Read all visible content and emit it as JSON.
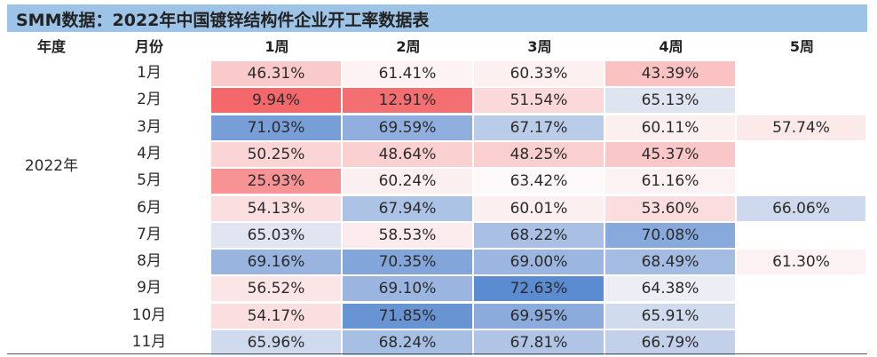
{
  "title": "SMM数据：2022年中国镀锌结构件企业开工率数据表",
  "headers": [
    "年度",
    "月份",
    "1周",
    "2周",
    "3周",
    "4周",
    "5周"
  ],
  "year": "2022年",
  "chart_data": {
    "type": "table",
    "title": "SMM数据：2022年中国镀锌结构件企业开工率数据表",
    "columns": [
      "1周",
      "2周",
      "3周",
      "4周",
      "5周"
    ],
    "rows": [
      {
        "month": "1月",
        "values": [
          46.31,
          61.41,
          60.33,
          43.39,
          null
        ]
      },
      {
        "month": "2月",
        "values": [
          9.94,
          12.91,
          51.54,
          65.13,
          null
        ]
      },
      {
        "month": "3月",
        "values": [
          71.03,
          69.59,
          67.17,
          60.11,
          57.74
        ]
      },
      {
        "month": "4月",
        "values": [
          50.25,
          48.64,
          48.25,
          45.37,
          null
        ]
      },
      {
        "month": "5月",
        "values": [
          25.93,
          60.24,
          63.42,
          61.16,
          null
        ]
      },
      {
        "month": "6月",
        "values": [
          54.13,
          67.94,
          60.01,
          53.6,
          66.06
        ]
      },
      {
        "month": "7月",
        "values": [
          65.03,
          58.53,
          68.22,
          70.08,
          null
        ]
      },
      {
        "month": "8月",
        "values": [
          69.16,
          70.35,
          69.0,
          68.49,
          61.3
        ]
      },
      {
        "month": "9月",
        "values": [
          56.52,
          69.1,
          72.63,
          64.38,
          null
        ]
      },
      {
        "month": "10月",
        "values": [
          54.17,
          71.85,
          69.95,
          65.91,
          null
        ]
      },
      {
        "month": "11月",
        "values": [
          65.96,
          68.24,
          67.81,
          66.79,
          null
        ]
      }
    ],
    "unit": "%",
    "colors": {
      "low": "#f4676a",
      "mid": "#fdf8f9",
      "high": "#5b8bd0"
    }
  }
}
